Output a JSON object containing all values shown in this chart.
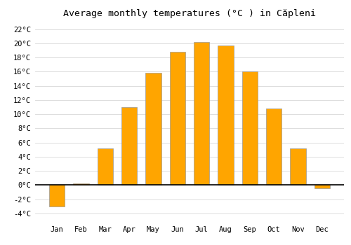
{
  "title": "Average monthly temperatures (°C ) in Căpleni",
  "months": [
    "Jan",
    "Feb",
    "Mar",
    "Apr",
    "May",
    "Jun",
    "Jul",
    "Aug",
    "Sep",
    "Oct",
    "Nov",
    "Dec"
  ],
  "values": [
    -3.0,
    0.2,
    5.2,
    11.0,
    15.8,
    18.8,
    20.2,
    19.7,
    16.0,
    10.8,
    5.2,
    -0.5
  ],
  "bar_color": "#FFA500",
  "bar_edge_color": "#999999",
  "ylim": [
    -5,
    23
  ],
  "yticks": [
    -4,
    -2,
    0,
    2,
    4,
    6,
    8,
    10,
    12,
    14,
    16,
    18,
    20,
    22
  ],
  "grid_color": "#d8d8d8",
  "background_color": "#ffffff",
  "title_fontsize": 9.5,
  "tick_fontsize": 7.5,
  "zero_line_color": "#000000",
  "bar_width": 0.65
}
